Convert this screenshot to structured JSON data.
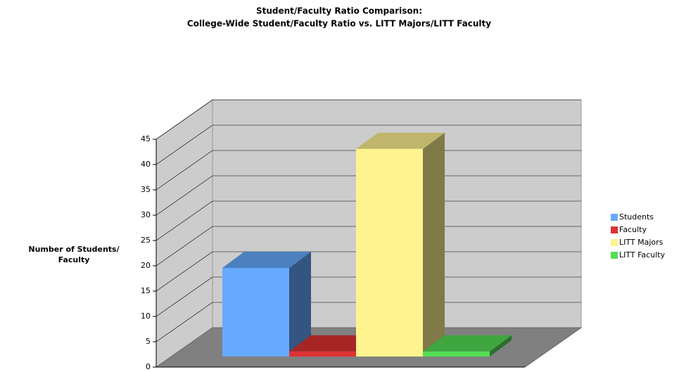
{
  "chart_data": {
    "type": "bar3d",
    "title": "Student/Faculty Ratio Comparison:",
    "subtitle": "College-Wide Student/Faculty Ratio vs. LITT Majors/LITT Faculty",
    "y_label": "Number of Students/ Faculty",
    "categories": [
      null
    ],
    "series": [
      {
        "name": "Students",
        "color": "#66aaff",
        "values": [
          17.5
        ]
      },
      {
        "name": "Faculty",
        "color": "#dd3333",
        "values": [
          1
        ]
      },
      {
        "name": "LITT Majors",
        "color": "#fff38f",
        "values": [
          41
        ]
      },
      {
        "name": "LITT Faculty",
        "color": "#55dd55",
        "values": [
          1
        ]
      }
    ],
    "ylim": [
      0,
      45
    ],
    "yticks": [
      0,
      5,
      10,
      15,
      20,
      25,
      30,
      35,
      40,
      45
    ],
    "grid": true,
    "legend": "right"
  }
}
